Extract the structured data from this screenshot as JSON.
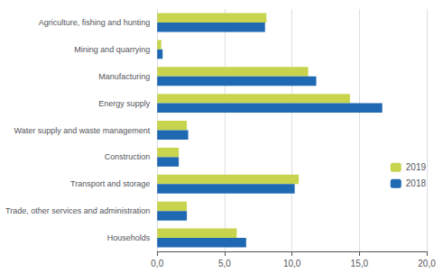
{
  "chart_data": {
    "type": "bar",
    "orientation": "horizontal",
    "categories": [
      "Agriculture, fishing and hunting",
      "Mining and quarrying",
      "Manufacturing",
      "Energy supply",
      "Water supply and waste management",
      "Construction",
      "Transport and storage",
      "Trade, other services and administration",
      "Households"
    ],
    "series": [
      {
        "name": "2019",
        "color": "#c8d44e",
        "values": [
          8.1,
          0.3,
          11.2,
          14.3,
          2.2,
          1.6,
          10.5,
          2.2,
          5.9
        ]
      },
      {
        "name": "2018",
        "color": "#1f69b2",
        "values": [
          8.0,
          0.4,
          11.8,
          16.7,
          2.3,
          1.6,
          10.2,
          2.2,
          6.6
        ]
      }
    ],
    "xlim": [
      0,
      20
    ],
    "xticks": [
      {
        "value": 0,
        "label": "0,0"
      },
      {
        "value": 5,
        "label": "5,0"
      },
      {
        "value": 10,
        "label": "10,0"
      },
      {
        "value": 15,
        "label": "15,0"
      },
      {
        "value": 20,
        "label": "20,0"
      }
    ],
    "grid": true,
    "legend": "right"
  }
}
